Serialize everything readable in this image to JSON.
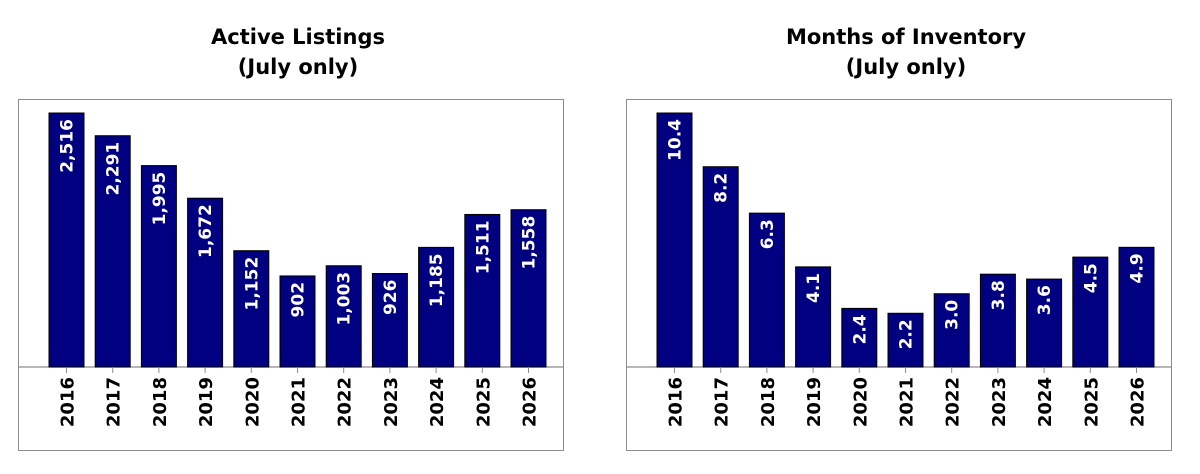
{
  "chart_data": [
    {
      "type": "bar",
      "title": "Active Listings",
      "subtitle": "(July only)",
      "categories": [
        "2016",
        "2017",
        "2018",
        "2019",
        "2020",
        "2021",
        "2022",
        "2023",
        "2024",
        "2025",
        "2026"
      ],
      "values": [
        2516,
        2291,
        1995,
        1672,
        1152,
        902,
        1003,
        926,
        1185,
        1511,
        1558
      ],
      "value_labels": [
        "2,516",
        "2,291",
        "1,995",
        "1,672",
        "1,152",
        "902",
        "1,003",
        "926",
        "1,185",
        "1,511",
        "1,558"
      ],
      "ylim": [
        0,
        2516
      ],
      "grid": false,
      "bar_color": "#000080"
    },
    {
      "type": "bar",
      "title": "Months of Inventory",
      "subtitle": "(July only)",
      "categories": [
        "2016",
        "2017",
        "2018",
        "2019",
        "2020",
        "2021",
        "2022",
        "2023",
        "2024",
        "2025",
        "2026"
      ],
      "values": [
        10.4,
        8.2,
        6.3,
        4.1,
        2.4,
        2.2,
        3.0,
        3.8,
        3.6,
        4.5,
        4.9
      ],
      "value_labels": [
        "10.4",
        "8.2",
        "6.3",
        "4.1",
        "2.4",
        "2.2",
        "3.0",
        "3.8",
        "3.6",
        "4.5",
        "4.9"
      ],
      "ylim": [
        0,
        10.4
      ],
      "grid": false,
      "bar_color": "#000080"
    }
  ]
}
